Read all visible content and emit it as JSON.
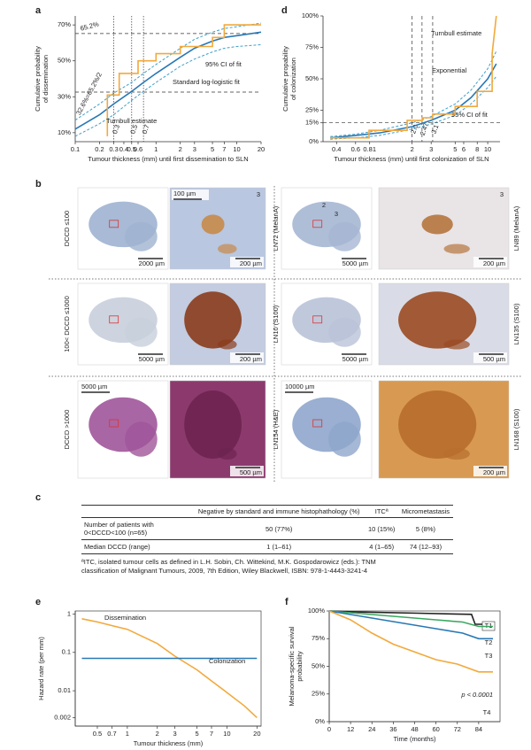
{
  "chart_data": [
    {
      "panel": "a",
      "type": "line",
      "xscale": "log",
      "xlim": [
        0.1,
        20
      ],
      "ylim": [
        5,
        75
      ],
      "xlabel": "Tumour thickness (mm) until first dissemination to SLN",
      "ylabel": "Cumulative probability of dissemination",
      "xticks": [
        0.1,
        0.2,
        0.3,
        0.4,
        0.5,
        0.6,
        1,
        2,
        3,
        5,
        7,
        10,
        20
      ],
      "yticks": [
        {
          "value": 10,
          "label": "10%"
        },
        {
          "value": 30,
          "label": "30%"
        },
        {
          "value": 50,
          "label": "50%"
        },
        {
          "value": 70,
          "label": "70%"
        }
      ],
      "hlines": [
        {
          "value": 65.2,
          "label": "65.2%"
        },
        {
          "value": 32.6,
          "label": "32.6%=65.2%/2"
        }
      ],
      "vlines": [
        0.3,
        0.5,
        0.7
      ],
      "series": [
        {
          "name": "Standard log-logistic fit",
          "color": "#2878b5",
          "x": [
            0.1,
            0.2,
            0.3,
            0.5,
            0.7,
            1,
            2,
            3,
            5,
            7,
            10,
            20
          ],
          "values": [
            12,
            20,
            26,
            33,
            38,
            43,
            52,
            57,
            61,
            63,
            64,
            66
          ]
        },
        {
          "name": "95% CI of fit",
          "color": "#3fa0c8",
          "dashed": true,
          "x": [
            0.1,
            0.2,
            0.3,
            0.5,
            0.7,
            1,
            2,
            3,
            5,
            7,
            10,
            20
          ],
          "values": [
            8,
            15,
            20,
            28,
            33,
            38,
            47,
            51,
            55,
            57,
            58,
            59
          ],
          "upper": [
            17,
            26,
            32,
            38,
            43,
            48,
            57,
            62,
            66,
            68,
            69,
            71
          ]
        },
        {
          "name": "Turnbull estimate",
          "color": "#f2a93b",
          "x": [
            0.25,
            0.25,
            0.35,
            0.35,
            0.6,
            0.6,
            1,
            1,
            2,
            2,
            5,
            5,
            7,
            7,
            20
          ],
          "values": [
            8,
            31,
            31,
            43,
            43,
            50,
            50,
            54,
            54,
            58,
            58,
            63,
            63,
            70,
            70
          ]
        }
      ]
    },
    {
      "panel": "d",
      "type": "line",
      "xscale": "log",
      "xlim": [
        0.3,
        13
      ],
      "ylim": [
        0,
        100
      ],
      "xlabel": "Tumour thickness (mm) until first colonization of SLN",
      "ylabel": "Cumulative propability of colonization",
      "xticks": [
        0.4,
        0.6,
        0.81,
        2,
        3,
        5,
        6,
        8,
        10
      ],
      "yticks": [
        {
          "value": 0,
          "label": "0%"
        },
        {
          "value": 15,
          "label": "15%"
        },
        {
          "value": 25,
          "label": "25%"
        },
        {
          "value": 50,
          "label": "50%"
        },
        {
          "value": 75,
          "label": "75%"
        },
        {
          "value": 100,
          "label": "100%"
        }
      ],
      "hlines": [
        15
      ],
      "vlines": [
        {
          "value": 2,
          "label": "2.0"
        },
        2.47,
        3.1
      ],
      "series": [
        {
          "name": "Exponential",
          "color": "#2878b5",
          "x": [
            0.35,
            0.6,
            1,
            2,
            3,
            5,
            7,
            10,
            12
          ],
          "values": [
            3,
            5,
            7,
            12,
            17,
            25,
            35,
            50,
            62
          ]
        },
        {
          "name": "95% CI of fit",
          "color": "#3fa0c8",
          "dashed": true,
          "x": [
            0.35,
            0.6,
            1,
            2,
            3,
            5,
            7,
            10,
            12
          ],
          "values": [
            2,
            3,
            5,
            10,
            14,
            21,
            30,
            43,
            52
          ],
          "upper": [
            4,
            6,
            9,
            15,
            20,
            30,
            41,
            58,
            72
          ]
        },
        {
          "name": "Turnbull estimate",
          "color": "#f2a93b",
          "x": [
            0.35,
            0.8,
            0.8,
            1.8,
            1.8,
            2.5,
            2.5,
            3.1,
            3.1,
            5,
            5,
            8,
            8,
            11,
            11,
            12
          ],
          "values": [
            3,
            3,
            9,
            9,
            17,
            17,
            19,
            19,
            22,
            22,
            28,
            28,
            40,
            40,
            70,
            100
          ]
        }
      ]
    },
    {
      "panel": "e",
      "type": "line",
      "xscale": "log",
      "yscale": "log",
      "xlim": [
        0.3,
        22
      ],
      "ylim": [
        0.0012,
        1.2
      ],
      "xlabel": "Tumour thickness (mm)",
      "ylabel": "Hazard rate (per mm)",
      "xticks": [
        0.5,
        0.7,
        1,
        2,
        3,
        5,
        7,
        10,
        20
      ],
      "yticks": [
        0.002,
        0.01,
        0.1,
        1
      ],
      "series": [
        {
          "name": "Dissemination",
          "color": "#f2a93b",
          "x": [
            0.35,
            0.5,
            0.7,
            1,
            2,
            3,
            5,
            7,
            10,
            15,
            20
          ],
          "values": [
            0.75,
            0.62,
            0.5,
            0.4,
            0.17,
            0.08,
            0.035,
            0.018,
            0.009,
            0.004,
            0.002
          ]
        },
        {
          "name": "Colonization",
          "color": "#2878b5",
          "x": [
            0.35,
            20
          ],
          "values": [
            0.07,
            0.07
          ]
        }
      ]
    },
    {
      "panel": "f",
      "type": "line",
      "xlim": [
        0,
        96
      ],
      "ylim": [
        0,
        100
      ],
      "xlabel": "Time (months)",
      "ylabel": "Melanoma-specific survival probability",
      "annotation": "p < 0.0001",
      "xticks": [
        0,
        12,
        24,
        36,
        48,
        60,
        72,
        84
      ],
      "yticks": [
        {
          "value": 0,
          "label": "0%"
        },
        {
          "value": 25,
          "label": "25%"
        },
        {
          "value": 50,
          "label": "50%"
        },
        {
          "value": 75,
          "label": "75%"
        },
        {
          "value": 100,
          "label": "100%"
        }
      ],
      "series": [
        {
          "name": "T1",
          "color": "#222222",
          "x": [
            0,
            20,
            50,
            80,
            82,
            92
          ],
          "values": [
            100,
            99,
            98,
            97,
            88,
            88
          ]
        },
        {
          "name": "T2",
          "color": "#3aa860",
          "x": [
            0,
            15,
            30,
            45,
            60,
            75,
            84,
            92
          ],
          "values": [
            100,
            98,
            96,
            94,
            92,
            90,
            86,
            86
          ]
        },
        {
          "name": "T3",
          "color": "#2878b5",
          "x": [
            0,
            15,
            30,
            45,
            60,
            75,
            84,
            92
          ],
          "values": [
            100,
            96,
            92,
            88,
            84,
            80,
            75,
            75
          ]
        },
        {
          "name": "T4",
          "color": "#f2a93b",
          "x": [
            0,
            12,
            24,
            36,
            48,
            60,
            72,
            84,
            92
          ],
          "values": [
            100,
            92,
            80,
            70,
            63,
            56,
            52,
            45,
            45
          ]
        }
      ]
    }
  ],
  "histology": {
    "panel": "b",
    "rows": [
      {
        "label": "DCCD ≤100",
        "cells": [
          {
            "scale": "2000 µm"
          },
          {
            "top_scale": "100 µm",
            "tag": "3",
            "scale": "200 µm"
          },
          {
            "label": "LN72 (MelanA)",
            "tags": [
              "2",
              "3"
            ],
            "scale": "5000 µm"
          },
          {
            "label": "LN89 (MelanA)",
            "tag": "3",
            "scale": "200 µm"
          }
        ]
      },
      {
        "label": "100< DCCD ≤1000",
        "cells": [
          {
            "scale": "5000 µm"
          },
          {
            "scale": "200 µm"
          },
          {
            "label": "LN10 (S100)",
            "scale": "5000 µm"
          },
          {
            "label": "LN135 (S100)",
            "scale": "500 µm"
          }
        ]
      },
      {
        "label": "DCCD >1000",
        "cells": [
          {
            "top_scale": "5000 µm"
          },
          {
            "scale": "500 µm"
          },
          {
            "label": "LN154 (H&E)",
            "top_scale": "10000 µm"
          },
          {
            "label": "LN168 (S100)",
            "scale": "200 µm"
          }
        ]
      }
    ]
  },
  "table": {
    "panel": "c",
    "columns": [
      "Negative by standard and immune histophathology (%)",
      "ITCª",
      "Micrometastasis"
    ],
    "rows": [
      [
        "Number of patients with 0<DCCD<100 (n=65)",
        "50 (77%)",
        "10 (15%)",
        "5 (8%)"
      ],
      [
        "Median DCCD (range)",
        "1 (1–61)",
        "4 (1–65)",
        "74 (12–93)"
      ]
    ],
    "footnote": "ªITC, isolated tumour cells as defined in L.H. Sobin, Ch. Wittekind, M.K. Gospodarowicz (eds.): TNM classification of Malignant Tumours, 2009, 7th Edition, Wiley Blackwell, ISBN: 978-1-4443-3241-4"
  }
}
